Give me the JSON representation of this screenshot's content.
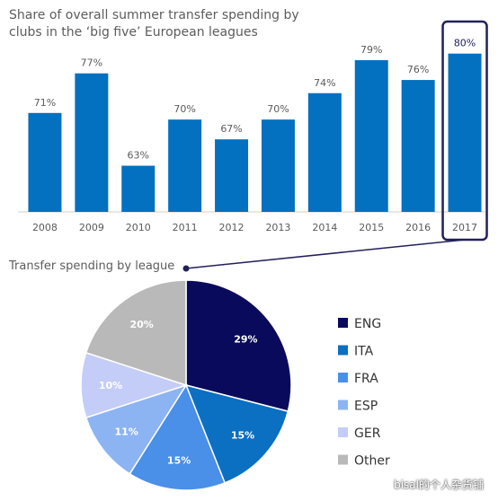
{
  "colors": {
    "bar": "#0470c0",
    "highlight_border": "#22205a",
    "label_text": "#5a5a5a",
    "pie": [
      "#0a0a5c",
      "#0b6fc2",
      "#4a8fe8",
      "#8db4f2",
      "#c4cdf7",
      "#b9b9b9"
    ],
    "pie_label": [
      "#ffffff",
      "#ffffff",
      "#ffffff",
      "#ffffff",
      "#ffffff",
      "#ffffff"
    ]
  },
  "chart_data": [
    {
      "type": "bar",
      "title": "Share of overall summer transfer spending by clubs in the ‘big five’ European leagues",
      "categories": [
        "2008",
        "2009",
        "2010",
        "2011",
        "2012",
        "2013",
        "2014",
        "2015",
        "2016",
        "2017"
      ],
      "values": [
        71,
        77,
        63,
        70,
        67,
        70,
        74,
        79,
        76,
        80
      ],
      "value_labels": [
        "71%",
        "77%",
        "63%",
        "70%",
        "67%",
        "70%",
        "74%",
        "79%",
        "76%",
        "80%"
      ],
      "highlighted_category": "2017",
      "ylim": [
        56,
        82
      ],
      "grid": false
    },
    {
      "type": "pie",
      "title": "Transfer spending by league",
      "labels": [
        "ENG",
        "ITA",
        "FRA",
        "ESP",
        "GER",
        "Other"
      ],
      "values": [
        29,
        15,
        15,
        11,
        10,
        20
      ],
      "value_labels": [
        "29%",
        "15%",
        "15%",
        "11%",
        "10%",
        "20%"
      ],
      "legend_position": "right"
    }
  ],
  "watermark": "bisal的个人杂货铺"
}
